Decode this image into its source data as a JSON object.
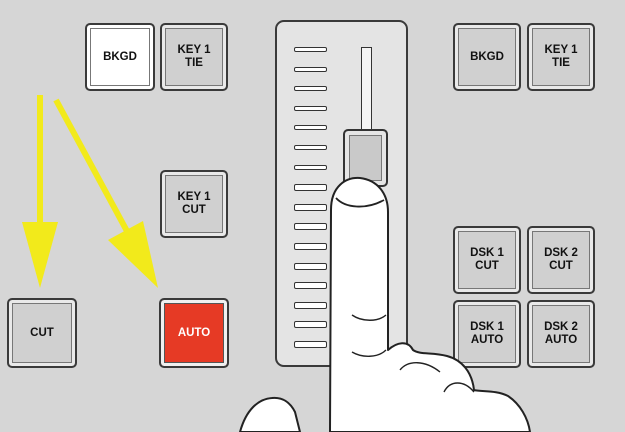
{
  "buttons": {
    "bkgd_left": "BKGD",
    "key1_tie_left": "KEY 1\nTIE",
    "key1_cut": "KEY 1\nCUT",
    "cut": "CUT",
    "auto": "AUTO",
    "bkgd_right": "BKGD",
    "key1_tie_right": "KEY 1\nTIE",
    "dsk1_cut": "DSK 1\nCUT",
    "dsk2_cut": "DSK 2\nCUT",
    "dsk1_auto": "DSK 1\nAUTO",
    "dsk2_auto": "DSK 2\nAUTO"
  },
  "colors": {
    "auto_active": "#e63a25",
    "bkgd_selected": "#ffffff",
    "arrow": "#f2ea1b"
  },
  "tbar": {
    "ticks_total": 16,
    "ticks_lit": 9
  }
}
